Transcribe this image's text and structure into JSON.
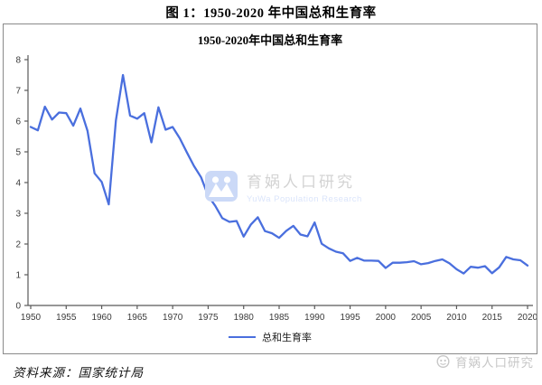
{
  "figure_title": "图 1：1950-2020 年中国总和生育率",
  "chart": {
    "title": "1950-2020年中国总和生育率",
    "legend_label": "总和生育率",
    "line_color": "#4a6fde",
    "axis_color": "#595959",
    "tick_label_color": "#3a3a3a"
  },
  "watermark": {
    "cn": "育娲人口研究",
    "en": "YuWa Population Research"
  },
  "footer": {
    "source": "资料来源：国家统计局",
    "brand": "育娲人口研究"
  },
  "chart_data": {
    "type": "line",
    "title": "1950-2020年中国总和生育率",
    "xlabel": "",
    "ylabel": "",
    "x_range": [
      1950,
      2020
    ],
    "x_step": 1,
    "x_tick_labels": [
      "1950",
      "1955",
      "1960",
      "1965",
      "1970",
      "1975",
      "1980",
      "1985",
      "1990",
      "1995",
      "2000",
      "2005",
      "2010",
      "2015",
      "2020"
    ],
    "y_ticks": [
      0,
      1,
      2,
      3,
      4,
      5,
      6,
      7,
      8
    ],
    "ylim": [
      0,
      8
    ],
    "grid": false,
    "legend_position": "bottom",
    "series": [
      {
        "name": "总和生育率",
        "values": [
          5.81,
          5.7,
          6.47,
          6.05,
          6.28,
          6.26,
          5.85,
          6.41,
          5.68,
          4.3,
          4.02,
          3.29,
          6.02,
          7.5,
          6.18,
          6.08,
          6.26,
          5.31,
          6.45,
          5.72,
          5.81,
          5.44,
          4.98,
          4.54,
          4.17,
          3.57,
          3.24,
          2.84,
          2.72,
          2.75,
          2.24,
          2.63,
          2.87,
          2.42,
          2.35,
          2.2,
          2.43,
          2.59,
          2.31,
          2.25,
          2.7,
          2.01,
          1.86,
          1.75,
          1.7,
          1.45,
          1.55,
          1.46,
          1.46,
          1.45,
          1.22,
          1.39,
          1.39,
          1.41,
          1.44,
          1.34,
          1.38,
          1.45,
          1.5,
          1.37,
          1.18,
          1.04,
          1.26,
          1.23,
          1.28,
          1.05,
          1.24,
          1.58,
          1.5,
          1.47,
          1.3
        ]
      }
    ]
  }
}
